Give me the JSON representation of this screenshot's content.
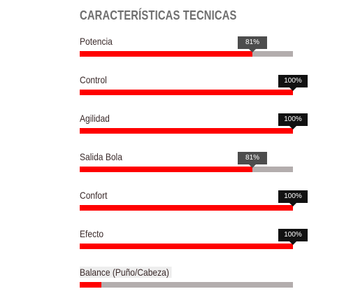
{
  "title": "CARACTERÍSTICAS TECNICAS",
  "items": [
    {
      "label": "Potencia",
      "value_percent": 81,
      "value_text": "81%",
      "tip_style": "gray"
    },
    {
      "label": "Control",
      "value_percent": 100,
      "value_text": "100%",
      "tip_style": "black"
    },
    {
      "label": "Agilidad",
      "value_percent": 100,
      "value_text": "100%",
      "tip_style": "black"
    },
    {
      "label": "Salida Bola",
      "value_percent": 81,
      "value_text": "81%",
      "tip_style": "gray"
    },
    {
      "label": "Confort",
      "value_percent": 100,
      "value_text": "100%",
      "tip_style": "black"
    },
    {
      "label": "Efecto",
      "value_percent": 100,
      "value_text": "100%",
      "tip_style": "black"
    },
    {
      "label": "Balance (Puño/Cabeza)",
      "value_percent": 10,
      "value_text": "",
      "tip_style": "none"
    }
  ],
  "colors": {
    "fill": "#ff0000",
    "track": "#b3adad",
    "title": "#6f6f6f",
    "label": "#3a2a2a",
    "tip_gray": "#4d4d4d",
    "tip_black": "#111111"
  }
}
